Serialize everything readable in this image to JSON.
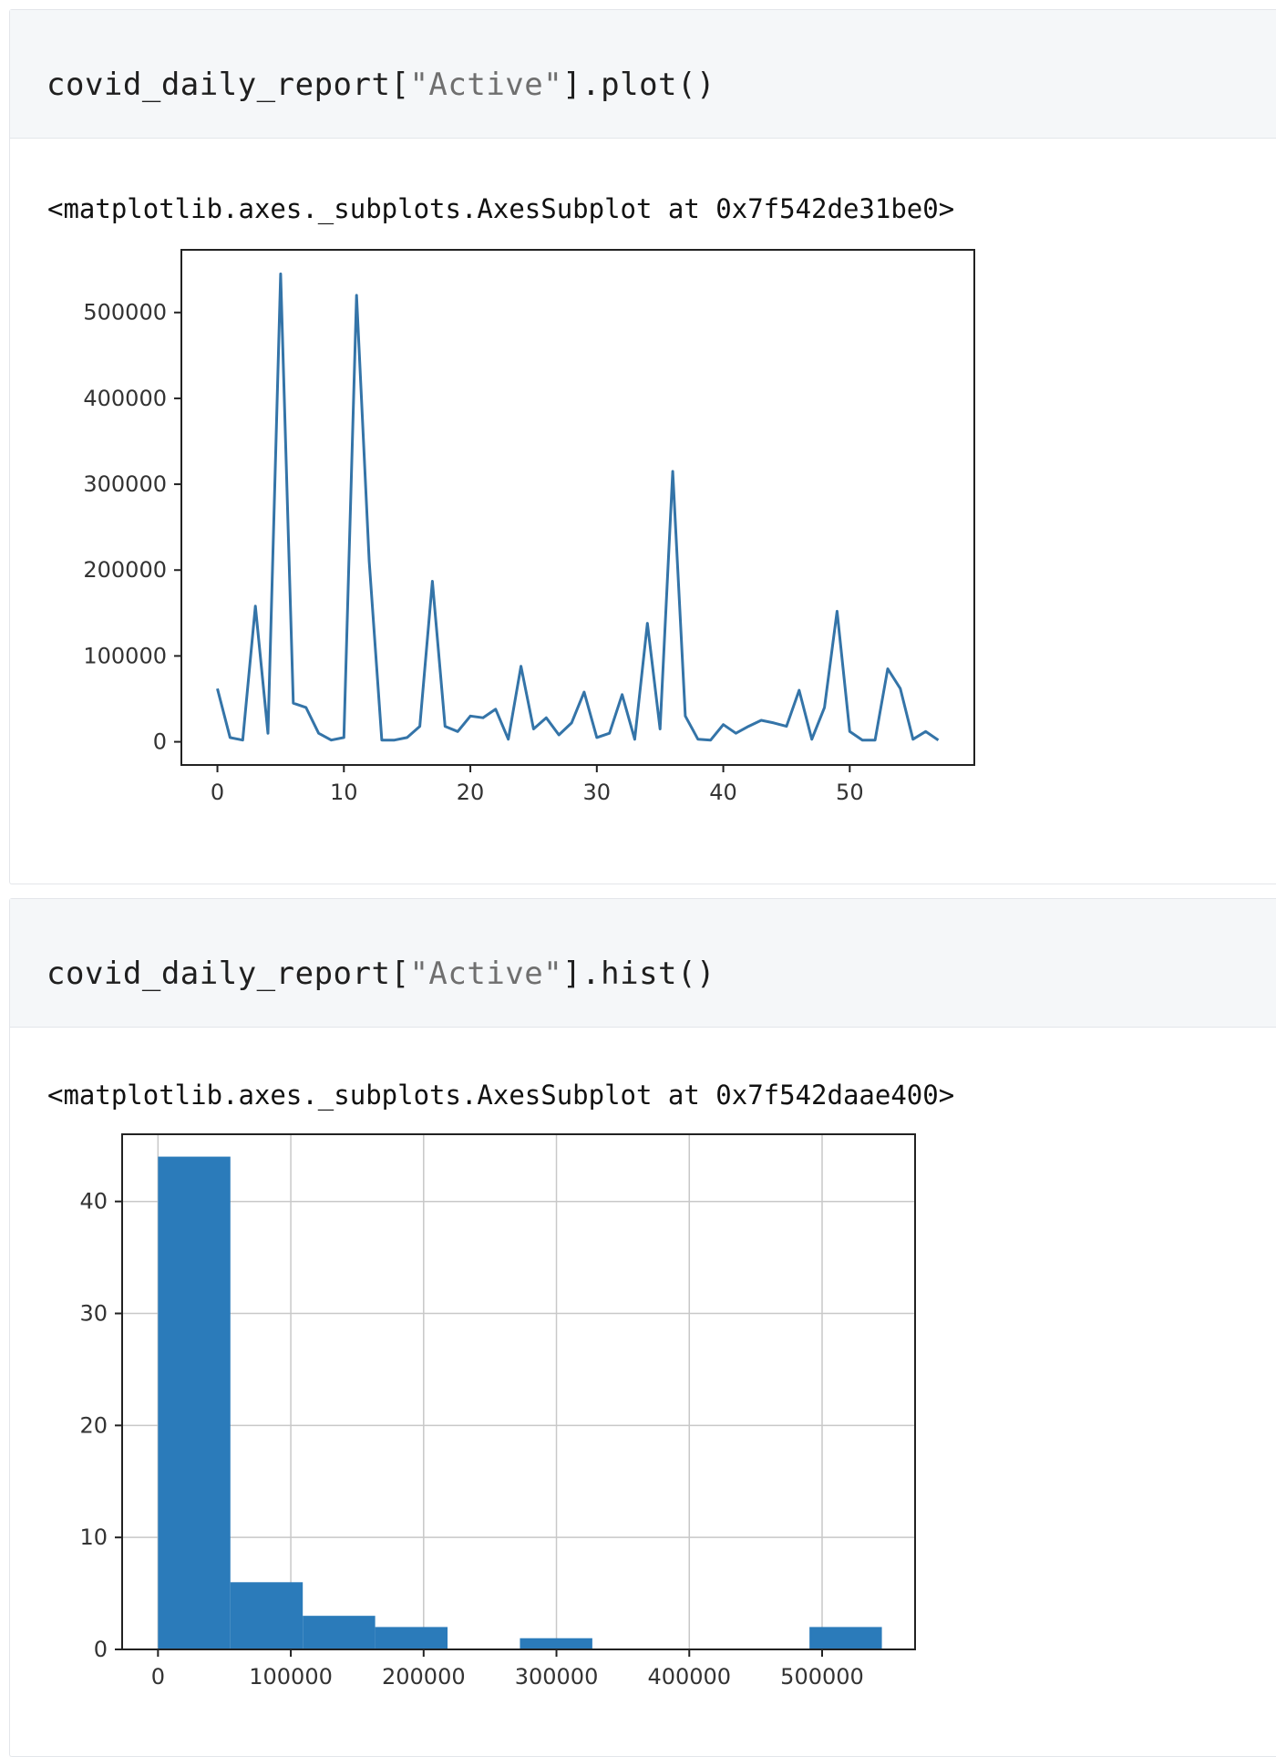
{
  "cells": [
    {
      "code": {
        "prefix": "covid_daily_report[",
        "string": "\"Active\"",
        "suffix": "].plot()"
      },
      "output_repr": "<matplotlib.axes._subplots.AxesSubplot at 0x7f542de31be0>"
    },
    {
      "code": {
        "prefix": "covid_daily_report[",
        "string": "\"Active\"",
        "suffix": "].hist()"
      },
      "output_repr": "<matplotlib.axes._subplots.AxesSubplot at 0x7f542daae400>"
    }
  ],
  "chart_data": [
    {
      "type": "line",
      "title": "",
      "xlabel": "",
      "ylabel": "",
      "color": "#3474a8",
      "xlim": [
        -2.85,
        59.85
      ],
      "ylim": [
        -27000,
        573000
      ],
      "x_ticks": [
        0,
        10,
        20,
        30,
        40,
        50
      ],
      "y_ticks": [
        0,
        100000,
        200000,
        300000,
        400000,
        500000
      ],
      "grid": false,
      "series": [
        {
          "x": [
            0,
            1,
            2,
            3,
            4,
            5,
            6,
            7,
            8,
            9,
            10,
            11,
            12,
            13,
            14,
            15,
            16,
            17,
            18,
            19,
            20,
            21,
            22,
            23,
            24,
            25,
            26,
            27,
            28,
            29,
            30,
            31,
            32,
            33,
            34,
            35,
            36,
            37,
            38,
            39,
            40,
            41,
            42,
            43,
            44,
            45,
            46,
            47,
            48,
            49,
            50,
            51,
            52,
            53,
            54,
            55,
            56,
            57
          ],
          "y": [
            62000,
            5000,
            2000,
            158000,
            10000,
            545000,
            45000,
            40000,
            10000,
            2000,
            5000,
            520000,
            210000,
            2000,
            2000,
            5000,
            18000,
            187000,
            18000,
            12000,
            30000,
            28000,
            38000,
            3000,
            88000,
            15000,
            28000,
            8000,
            22000,
            58000,
            5000,
            10000,
            55000,
            3000,
            138000,
            15000,
            315000,
            30000,
            3000,
            2000,
            20000,
            10000,
            18000,
            25000,
            22000,
            18000,
            60000,
            3000,
            40000,
            152000,
            12000,
            2000,
            2000,
            85000,
            62000,
            3000,
            12000,
            2000
          ]
        }
      ]
    },
    {
      "type": "bar",
      "title": "",
      "xlabel": "",
      "ylabel": "",
      "color": "#2b7bba",
      "xlim": [
        -27000,
        570000
      ],
      "ylim": [
        0,
        46
      ],
      "x_ticks": [
        0,
        100000,
        200000,
        300000,
        400000,
        500000
      ],
      "y_ticks": [
        0,
        10,
        20,
        30,
        40
      ],
      "grid": true,
      "bin_edges": [
        0,
        54500,
        109000,
        163500,
        218000,
        272500,
        327000,
        381500,
        436000,
        490500,
        545000
      ],
      "values": [
        44,
        6,
        3,
        2,
        0,
        1,
        0,
        0,
        0,
        2
      ]
    }
  ]
}
